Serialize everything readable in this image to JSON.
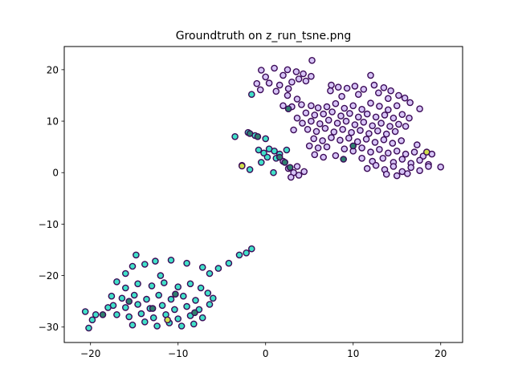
{
  "chart_data": {
    "type": "scatter",
    "title": "Groundtruth on z_run_tsne.png",
    "xlabel": "",
    "ylabel": "",
    "xlim": [
      -23,
      22.5
    ],
    "ylim": [
      -33,
      24.5
    ],
    "x_ticks": [
      -20,
      -10,
      0,
      10,
      20
    ],
    "y_ticks": [
      -30,
      -20,
      -10,
      0,
      10,
      20
    ],
    "x_tick_labels": [
      "−20",
      "−10",
      "0",
      "10",
      "20"
    ],
    "y_tick_labels": [
      "−30",
      "−20",
      "−10",
      "0",
      "10",
      "20"
    ],
    "grid": false,
    "legend": false,
    "outline_color": "#3b0a57",
    "series": [
      {
        "color": "#d6c4f7",
        "points": [
          [
            5.3,
            21.8
          ],
          [
            -0.5,
            19.9
          ],
          [
            1.0,
            20.3
          ],
          [
            2.5,
            20.0
          ],
          [
            3.5,
            19.6
          ],
          [
            4.3,
            19.2
          ],
          [
            5.2,
            18.7
          ],
          [
            0.0,
            18.6
          ],
          [
            2.0,
            18.9
          ],
          [
            3.8,
            18.2
          ],
          [
            -1.0,
            17.3
          ],
          [
            0.4,
            17.4
          ],
          [
            1.6,
            17.0
          ],
          [
            3.0,
            17.6
          ],
          [
            4.6,
            17.8
          ],
          [
            -0.6,
            16.1
          ],
          [
            1.2,
            15.8
          ],
          [
            2.6,
            16.3
          ],
          [
            7.5,
            17.0
          ],
          [
            8.3,
            16.6
          ],
          [
            9.3,
            16.4
          ],
          [
            10.2,
            16.8
          ],
          [
            11.2,
            16.2
          ],
          [
            12.0,
            18.9
          ],
          [
            12.4,
            17.0
          ],
          [
            13.5,
            16.5
          ],
          [
            14.3,
            15.9
          ],
          [
            15.2,
            15.0
          ],
          [
            15.9,
            14.5
          ],
          [
            16.5,
            13.6
          ],
          [
            17.6,
            12.4
          ],
          [
            7.4,
            15.9
          ],
          [
            8.7,
            14.8
          ],
          [
            10.6,
            15.2
          ],
          [
            12.9,
            15.5
          ],
          [
            14.0,
            14.4
          ],
          [
            2.5,
            15.0
          ],
          [
            3.6,
            14.3
          ],
          [
            2.0,
            13.0
          ],
          [
            3.0,
            12.8
          ],
          [
            4.1,
            13.2
          ],
          [
            5.2,
            13.0
          ],
          [
            6.0,
            12.6
          ],
          [
            7.0,
            12.8
          ],
          [
            8.0,
            13.4
          ],
          [
            9.0,
            12.5
          ],
          [
            10.0,
            13.0
          ],
          [
            11.0,
            12.3
          ],
          [
            12.0,
            13.5
          ],
          [
            13.0,
            12.9
          ],
          [
            14.0,
            12.2
          ],
          [
            15.0,
            13.0
          ],
          [
            4.6,
            11.6
          ],
          [
            5.6,
            11.2
          ],
          [
            6.6,
            11.4
          ],
          [
            7.6,
            11.8
          ],
          [
            8.6,
            11.0
          ],
          [
            9.6,
            11.5
          ],
          [
            10.6,
            10.8
          ],
          [
            11.6,
            11.4
          ],
          [
            12.6,
            10.8
          ],
          [
            13.6,
            11.2
          ],
          [
            14.6,
            10.6
          ],
          [
            15.6,
            11.3
          ],
          [
            16.4,
            10.6
          ],
          [
            3.6,
            10.6
          ],
          [
            4.2,
            9.6
          ],
          [
            5.2,
            10.0
          ],
          [
            6.2,
            9.5
          ],
          [
            7.2,
            10.2
          ],
          [
            8.2,
            9.6
          ],
          [
            9.2,
            10.0
          ],
          [
            10.2,
            9.3
          ],
          [
            11.2,
            9.8
          ],
          [
            12.2,
            9.1
          ],
          [
            13.2,
            9.6
          ],
          [
            14.2,
            9.0
          ],
          [
            15.2,
            9.4
          ],
          [
            16.0,
            9.0
          ],
          [
            3.2,
            8.3
          ],
          [
            4.8,
            8.4
          ],
          [
            5.8,
            8.0
          ],
          [
            6.8,
            8.6
          ],
          [
            7.8,
            7.9
          ],
          [
            8.8,
            8.4
          ],
          [
            9.8,
            7.8
          ],
          [
            10.8,
            8.2
          ],
          [
            11.8,
            7.6
          ],
          [
            12.8,
            8.1
          ],
          [
            13.8,
            7.5
          ],
          [
            14.8,
            8.0
          ],
          [
            5.5,
            6.6
          ],
          [
            6.5,
            6.2
          ],
          [
            7.5,
            6.8
          ],
          [
            8.5,
            6.3
          ],
          [
            9.5,
            6.7
          ],
          [
            10.5,
            6.0
          ],
          [
            11.5,
            6.5
          ],
          [
            12.5,
            5.9
          ],
          [
            13.5,
            6.4
          ],
          [
            14.5,
            5.7
          ],
          [
            15.5,
            6.2
          ],
          [
            17.3,
            5.4
          ],
          [
            5.0,
            5.2
          ],
          [
            6.0,
            4.8
          ],
          [
            7.0,
            5.0
          ],
          [
            9.0,
            4.6
          ],
          [
            10.0,
            4.2
          ],
          [
            11.0,
            4.8
          ],
          [
            12.0,
            4.0
          ],
          [
            13.0,
            4.5
          ],
          [
            14.0,
            3.8
          ],
          [
            15.0,
            4.2
          ],
          [
            16.0,
            3.6
          ],
          [
            17.0,
            4.0
          ],
          [
            18.0,
            3.2
          ],
          [
            19.0,
            3.6
          ],
          [
            5.6,
            3.5
          ],
          [
            6.6,
            3.0
          ],
          [
            8.0,
            3.3
          ],
          [
            11.0,
            2.8
          ],
          [
            12.2,
            2.2
          ],
          [
            13.4,
            2.8
          ],
          [
            14.6,
            2.0
          ],
          [
            15.6,
            2.6
          ],
          [
            16.6,
            1.8
          ],
          [
            17.6,
            2.4
          ],
          [
            18.6,
            1.6
          ],
          [
            11.6,
            0.8
          ],
          [
            12.6,
            1.4
          ],
          [
            13.6,
            0.6
          ],
          [
            14.6,
            1.2
          ],
          [
            15.6,
            0.2
          ],
          [
            16.6,
            1.0
          ],
          [
            17.6,
            0.4
          ],
          [
            18.6,
            1.2
          ],
          [
            13.8,
            -0.3
          ],
          [
            15.0,
            -0.6
          ],
          [
            16.2,
            -0.2
          ],
          [
            20.0,
            1.1
          ],
          [
            2.6,
            0.8
          ],
          [
            3.2,
            0.0
          ],
          [
            3.8,
            -0.5
          ],
          [
            4.4,
            0.2
          ],
          [
            2.9,
            -0.9
          ],
          [
            3.6,
            1.2
          ],
          [
            2.0,
            2.2
          ]
        ]
      },
      {
        "color": "#40e0c8",
        "points": [
          [
            -1.6,
            15.2
          ],
          [
            -3.5,
            7.0
          ],
          [
            -2.0,
            7.8
          ],
          [
            -1.2,
            7.2
          ],
          [
            0.0,
            6.6
          ],
          [
            -0.8,
            4.4
          ],
          [
            -0.2,
            3.8
          ],
          [
            0.4,
            4.6
          ],
          [
            1.0,
            4.2
          ],
          [
            1.6,
            3.6
          ],
          [
            0.2,
            3.0
          ],
          [
            1.2,
            2.8
          ],
          [
            2.4,
            4.4
          ],
          [
            -0.5,
            2.0
          ],
          [
            -2.7,
            1.4
          ],
          [
            -1.8,
            0.6
          ],
          [
            0.9,
            0.0
          ],
          [
            -10.8,
            -17.0
          ],
          [
            -12.6,
            -17.2
          ],
          [
            -13.8,
            -17.8
          ],
          [
            -15.2,
            -18.2
          ],
          [
            -16.0,
            -19.6
          ],
          [
            -9.0,
            -17.6
          ],
          [
            -7.2,
            -18.4
          ],
          [
            -6.4,
            -19.6
          ],
          [
            -17.0,
            -21.2
          ],
          [
            -16.0,
            -22.4
          ],
          [
            -14.6,
            -21.6
          ],
          [
            -13.0,
            -22.0
          ],
          [
            -11.6,
            -21.4
          ],
          [
            -10.0,
            -22.2
          ],
          [
            -8.6,
            -21.6
          ],
          [
            -7.4,
            -22.4
          ],
          [
            -6.6,
            -23.4
          ],
          [
            -17.6,
            -24.0
          ],
          [
            -16.4,
            -24.4
          ],
          [
            -15.0,
            -23.8
          ],
          [
            -13.6,
            -24.6
          ],
          [
            -12.2,
            -23.8
          ],
          [
            -10.8,
            -24.6
          ],
          [
            -9.4,
            -24.0
          ],
          [
            -8.0,
            -24.8
          ],
          [
            -17.4,
            -25.8
          ],
          [
            -16.0,
            -26.2
          ],
          [
            -14.6,
            -25.6
          ],
          [
            -13.2,
            -26.4
          ],
          [
            -11.8,
            -25.8
          ],
          [
            -10.4,
            -26.6
          ],
          [
            -9.0,
            -26.0
          ],
          [
            -7.6,
            -26.6
          ],
          [
            -6.4,
            -25.6
          ],
          [
            -17.0,
            -27.6
          ],
          [
            -15.6,
            -28.0
          ],
          [
            -14.2,
            -27.4
          ],
          [
            -12.8,
            -28.2
          ],
          [
            -11.4,
            -27.6
          ],
          [
            -10.0,
            -28.4
          ],
          [
            -8.6,
            -27.8
          ],
          [
            -7.2,
            -28.2
          ],
          [
            -15.2,
            -29.6
          ],
          [
            -13.8,
            -29.0
          ],
          [
            -12.4,
            -29.8
          ],
          [
            -11.0,
            -29.2
          ],
          [
            -9.6,
            -29.8
          ],
          [
            -8.2,
            -29.4
          ],
          [
            -19.4,
            -27.6
          ],
          [
            -19.8,
            -28.6
          ],
          [
            -20.6,
            -27.0
          ],
          [
            -20.2,
            -30.2
          ],
          [
            -18.0,
            -26.2
          ],
          [
            -6.0,
            -24.4
          ],
          [
            -5.4,
            -18.6
          ],
          [
            -4.2,
            -17.6
          ],
          [
            -3.0,
            -16.0
          ],
          [
            -2.2,
            -15.6
          ],
          [
            -1.6,
            -14.8
          ],
          [
            -14.8,
            -16.0
          ],
          [
            -12.0,
            -20.0
          ]
        ]
      },
      {
        "color": "#2e7f6e",
        "points": [
          [
            -1.8,
            7.6
          ],
          [
            -0.9,
            7.0
          ],
          [
            2.2,
            2.0
          ],
          [
            2.8,
            1.0
          ],
          [
            1.6,
            3.0
          ],
          [
            8.9,
            2.6
          ],
          [
            10.0,
            5.2
          ],
          [
            2.6,
            12.4
          ],
          [
            -12.9,
            -26.4
          ],
          [
            -10.3,
            -23.6
          ],
          [
            -8.1,
            -27.2
          ],
          [
            -15.6,
            -25.0
          ],
          [
            -18.6,
            -27.6
          ]
        ]
      },
      {
        "color": "#cfe04a",
        "points": [
          [
            -2.7,
            1.3
          ],
          [
            18.4,
            4.0
          ],
          [
            -11.2,
            -28.6
          ]
        ]
      }
    ]
  }
}
